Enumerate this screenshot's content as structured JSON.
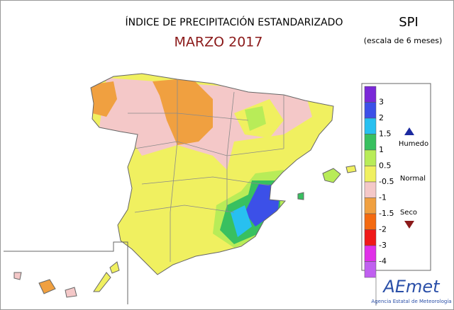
{
  "header": {
    "title": "ÍNDICE DE PRECIPITACIÓN ESTANDARIZADO",
    "period": "MARZO 2017",
    "index": "SPI",
    "scale": "(escala de 6 meses)"
  },
  "legend": {
    "items": [
      {
        "color": "#7a28d8",
        "label": "3"
      },
      {
        "color": "#3c50e8",
        "label": "2"
      },
      {
        "color": "#28c0f0",
        "label": "1.5"
      },
      {
        "color": "#38c060",
        "label": "1"
      },
      {
        "color": "#b8ec58",
        "label": "0.5"
      },
      {
        "color": "#f0f060",
        "label": "-0.5"
      },
      {
        "color": "#f4c8c8",
        "label": "-1"
      },
      {
        "color": "#f0a040",
        "label": "-1.5"
      },
      {
        "color": "#f46a10",
        "label": "-2"
      },
      {
        "color": "#f01818",
        "label": "-3"
      },
      {
        "color": "#e030e8",
        "label": "-4"
      },
      {
        "color": "#c060f0",
        "label": null
      }
    ],
    "wet": "Humedo",
    "normal": "Normal",
    "dry": "Seco"
  },
  "logo": {
    "name": "AEmet",
    "agency": "Agencia Estatal de Meteorología"
  }
}
